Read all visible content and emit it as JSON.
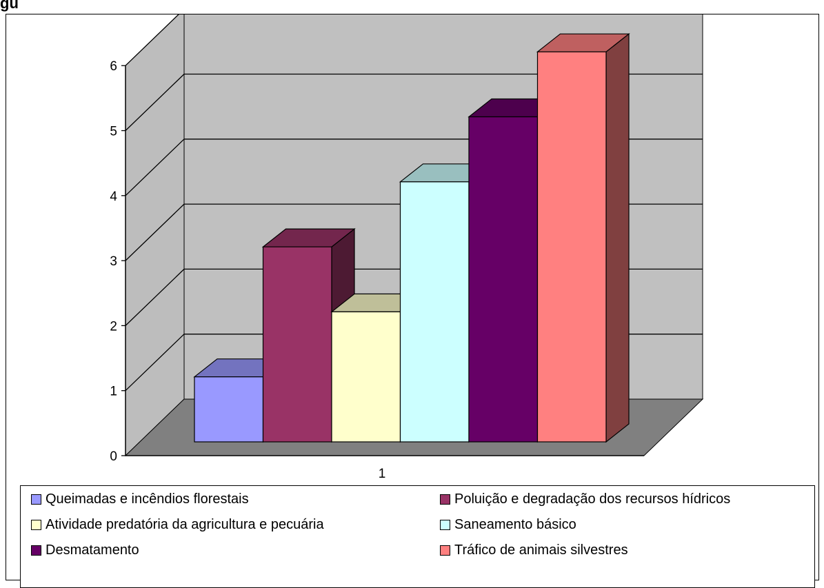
{
  "header_fragment": "gu",
  "chart_data": {
    "type": "bar",
    "categories": [
      "1"
    ],
    "series": [
      {
        "name": "Queimadas e incêndios florestais",
        "values": [
          1
        ],
        "color": "#9999ff"
      },
      {
        "name": "Poluição e degradação dos recursos hídricos",
        "values": [
          3
        ],
        "color": "#993366"
      },
      {
        "name": "Atividade predatória da agricultura e pecuária",
        "values": [
          2
        ],
        "color": "#ffffcc"
      },
      {
        "name": "Saneamento básico",
        "values": [
          4
        ],
        "color": "#ccffff"
      },
      {
        "name": "Desmatamento",
        "values": [
          5
        ],
        "color": "#660066"
      },
      {
        "name": "Tráfico de animais silvestres",
        "values": [
          6
        ],
        "color": "#ff8080"
      }
    ],
    "ylim": [
      0,
      6
    ],
    "yticks": [
      "0",
      "1",
      "2",
      "3",
      "4",
      "5",
      "6"
    ],
    "three_d": true,
    "grid": true,
    "legend": "bottom"
  }
}
